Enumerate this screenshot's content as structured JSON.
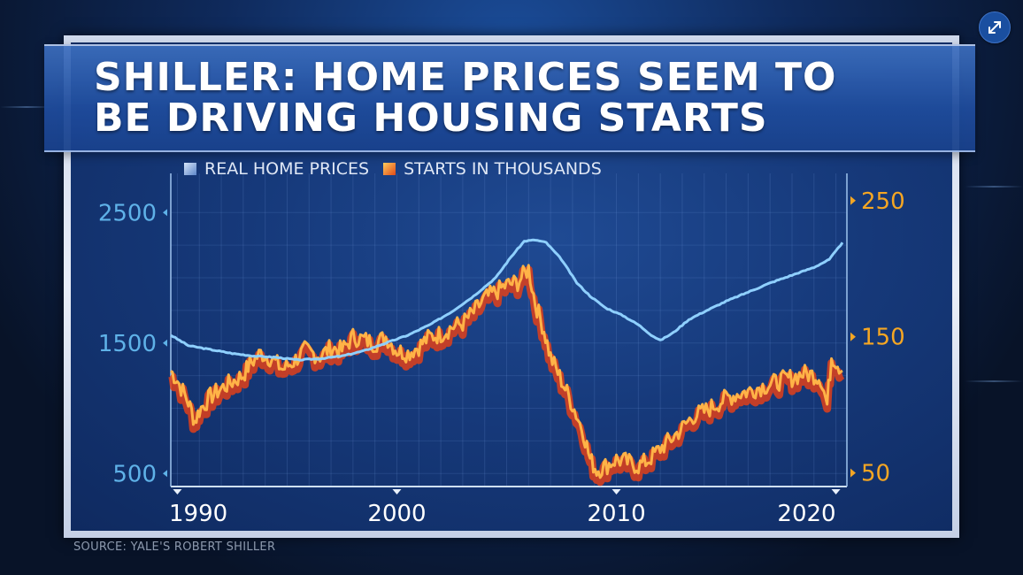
{
  "title": {
    "line1": "SHILLER: HOME PRICES SEEM TO",
    "line2": "BE DRIVING HOUSING STARTS"
  },
  "source": "SOURCE: YALE'S ROBERT SHILLER",
  "controls": {
    "expand_icon": "expand-arrows-icon"
  },
  "colors": {
    "prices_line": "#8fd0ff",
    "starts_fill": "#e0401a",
    "starts_line": "#ffb347",
    "left_axis": "#5fb2e8",
    "right_axis": "#f5a623"
  },
  "chart_data": {
    "type": "line",
    "legend": [
      "REAL HOME PRICES",
      "STARTS IN THOUSANDS"
    ],
    "x_ticks": [
      "1990",
      "2000",
      "2010",
      "2020"
    ],
    "xlim": [
      1989.7,
      2020.5
    ],
    "y_left": {
      "ticks": [
        "500",
        "1500",
        "2500"
      ],
      "ylim": [
        400,
        2800
      ]
    },
    "y_right": {
      "ticks": [
        "50",
        "150",
        "250"
      ],
      "ylim": [
        40,
        270
      ]
    },
    "series": [
      {
        "name": "REAL HOME PRICES",
        "axis": "left",
        "x": [
          1989.7,
          1990.5,
          1991.5,
          1992.5,
          1993.5,
          1994.5,
          1995.5,
          1996.5,
          1997.5,
          1998.5,
          1999.5,
          2000.5,
          2001.5,
          2002.5,
          2003.5,
          2004.5,
          2005.2,
          2005.8,
          2006.3,
          2006.8,
          2007.5,
          2008.2,
          2008.8,
          2009.5,
          2010.3,
          2011.0,
          2011.6,
          2012.0,
          2012.6,
          2013.3,
          2014.0,
          2015.0,
          2016.0,
          2017.0,
          2018.0,
          2019.0,
          2019.7,
          2020.3
        ],
        "values": [
          1560,
          1480,
          1450,
          1420,
          1400,
          1390,
          1370,
          1380,
          1400,
          1440,
          1500,
          1560,
          1640,
          1740,
          1860,
          2000,
          2160,
          2280,
          2290,
          2270,
          2140,
          1960,
          1860,
          1770,
          1710,
          1640,
          1560,
          1520,
          1580,
          1680,
          1740,
          1820,
          1890,
          1960,
          2020,
          2080,
          2140,
          2270
        ]
      },
      {
        "name": "STARTS IN THOUSANDS",
        "axis": "right",
        "x": [
          1989.7,
          1990.0,
          1990.5,
          1990.8,
          1991.0,
          1991.5,
          1992.0,
          1992.5,
          1993.0,
          1993.3,
          1993.8,
          1994.3,
          1994.8,
          1995.3,
          1995.8,
          1996.5,
          1997.0,
          1997.5,
          1998.0,
          1998.5,
          1999.0,
          1999.5,
          2000.0,
          2000.5,
          2001.0,
          2001.5,
          2002.0,
          2002.5,
          2003.0,
          2003.5,
          2004.0,
          2004.5,
          2005.0,
          2005.5,
          2006.0,
          2006.3,
          2006.7,
          2007.0,
          2007.5,
          2008.0,
          2008.5,
          2008.8,
          2009.1,
          2009.5,
          2010.0,
          2010.5,
          2011.0,
          2011.5,
          2012.0,
          2012.5,
          2013.0,
          2013.5,
          2014.0,
          2014.5,
          2015.0,
          2015.5,
          2016.0,
          2016.5,
          2017.0,
          2017.5,
          2018.0,
          2018.5,
          2019.0,
          2019.3,
          2019.6,
          2019.8,
          2020.0,
          2020.3
        ],
        "values": [
          125,
          118,
          102,
          88,
          96,
          106,
          112,
          117,
          122,
          130,
          138,
          134,
          126,
          132,
          140,
          136,
          142,
          140,
          150,
          148,
          145,
          150,
          140,
          138,
          143,
          150,
          152,
          157,
          160,
          168,
          178,
          183,
          188,
          190,
          200,
          175,
          155,
          135,
          118,
          100,
          80,
          60,
          52,
          55,
          60,
          58,
          55,
          60,
          68,
          75,
          83,
          92,
          95,
          100,
          105,
          108,
          110,
          113,
          115,
          118,
          120,
          123,
          122,
          120,
          100,
          136,
          132,
          125
        ]
      }
    ],
    "grid": true
  }
}
